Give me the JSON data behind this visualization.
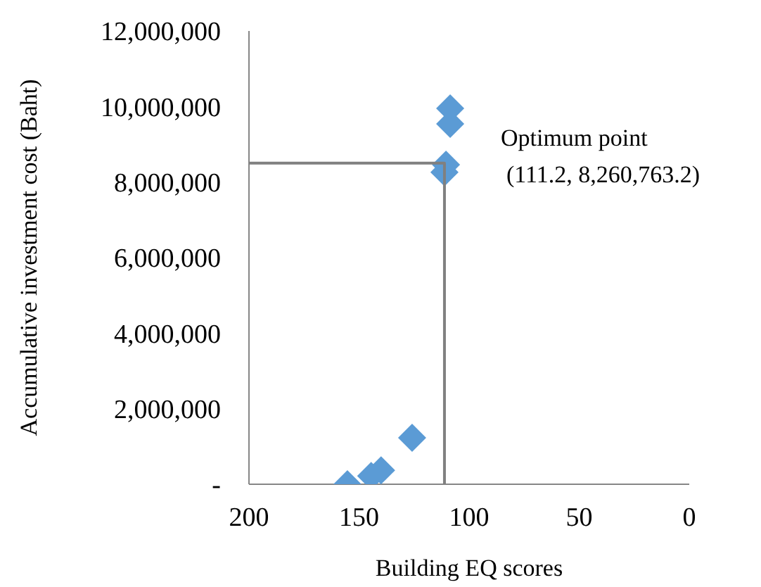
{
  "chart_data": {
    "type": "scatter",
    "xlabel": "Building EQ scores",
    "ylabel": "Accumulative investment cost (Baht)",
    "xlim": [
      200,
      0
    ],
    "xticks": [
      200,
      150,
      100,
      50,
      0
    ],
    "ylim": [
      0,
      12000000
    ],
    "yticks": [
      {
        "value": 0,
        "label": "-"
      },
      {
        "value": 2000000,
        "label": "2,000,000"
      },
      {
        "value": 4000000,
        "label": "4,000,000"
      },
      {
        "value": 6000000,
        "label": "6,000,000"
      },
      {
        "value": 8000000,
        "label": "8,000,000"
      },
      {
        "value": 10000000,
        "label": "10,000,000"
      },
      {
        "value": 12000000,
        "label": "12,000,000"
      }
    ],
    "grid": false,
    "legend": false,
    "marker": "diamond",
    "series": [
      {
        "color": "#5b9bd5",
        "x": [
          155.3,
          144.5,
          140,
          125.9,
          108.6,
          108.6,
          110.5,
          111.2
        ],
        "values": [
          0,
          220000,
          370000,
          1230000,
          9950000,
          9540000,
          8460000,
          8260763.2
        ]
      },
      {
        "type": "line",
        "color": "#808080",
        "marker": "none",
        "line_style": "solid",
        "x": [
          200,
          111.2,
          111.2
        ],
        "values": [
          8500000,
          8500000,
          0
        ]
      }
    ],
    "annotations": [
      {
        "text": "Optimum point\n(111.2, 8,260,763.2)",
        "x": 111.2,
        "y": 8260763.2
      }
    ]
  }
}
